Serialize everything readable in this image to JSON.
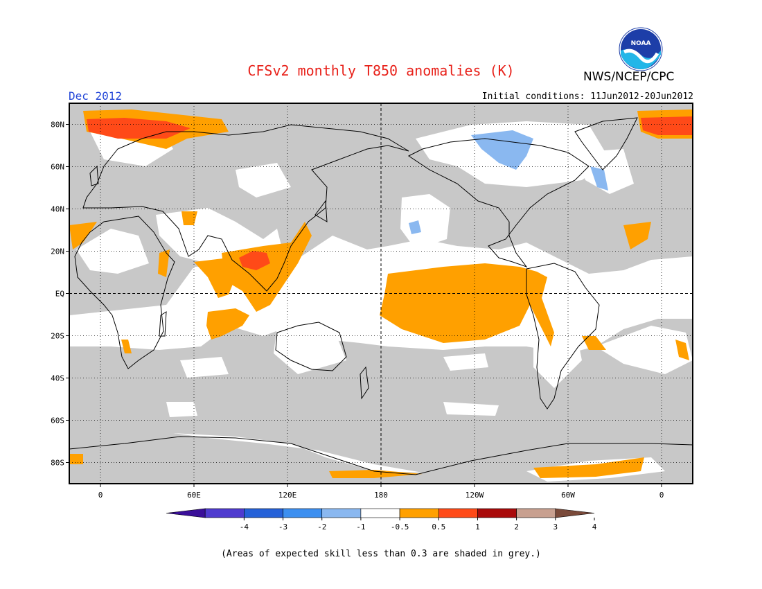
{
  "header": {
    "title": "CFSv2 monthly T850 anomalies (K)",
    "period": "Dec 2012",
    "initial_conditions": "Initial conditions: 11Jun2012-20Jun2012",
    "agency": "NWS/NCEP/CPC",
    "logo_icon": "noaa-logo-icon",
    "logo_text": "NOAA"
  },
  "map": {
    "projection": "equirectangular",
    "lon_range": [
      -20,
      380
    ],
    "lat_range": [
      -90,
      90
    ],
    "lat_ticks": [
      "80N",
      "60N",
      "40N",
      "20N",
      "EQ",
      "20S",
      "40S",
      "60S",
      "80S"
    ],
    "lon_ticks": [
      "0",
      "60E",
      "120E",
      "180",
      "120W",
      "60W",
      "0"
    ],
    "gridlines": "dotted",
    "background_fill": "#c8c8c8",
    "colors": {
      "grey": "#c8c8c8",
      "white": "#ffffff",
      "lightblue": "#8ab8f0",
      "orange": "#ffa000",
      "redorange": "#ff4a18"
    }
  },
  "colorbar": {
    "colors": [
      "#3a0f99",
      "#4f3bcf",
      "#2561d8",
      "#3c8ff0",
      "#8ab8f0",
      "#ffffff",
      "#ffa000",
      "#ff4a18",
      "#a90a0a",
      "#c8a090",
      "#7a4a3a"
    ],
    "labels": [
      "-4",
      "-3",
      "-2",
      "-1",
      "-0.5",
      "0.5",
      "1",
      "2",
      "3",
      "4"
    ]
  },
  "footnote": "(Areas of expected skill less than 0.3 are shaded in grey.)"
}
